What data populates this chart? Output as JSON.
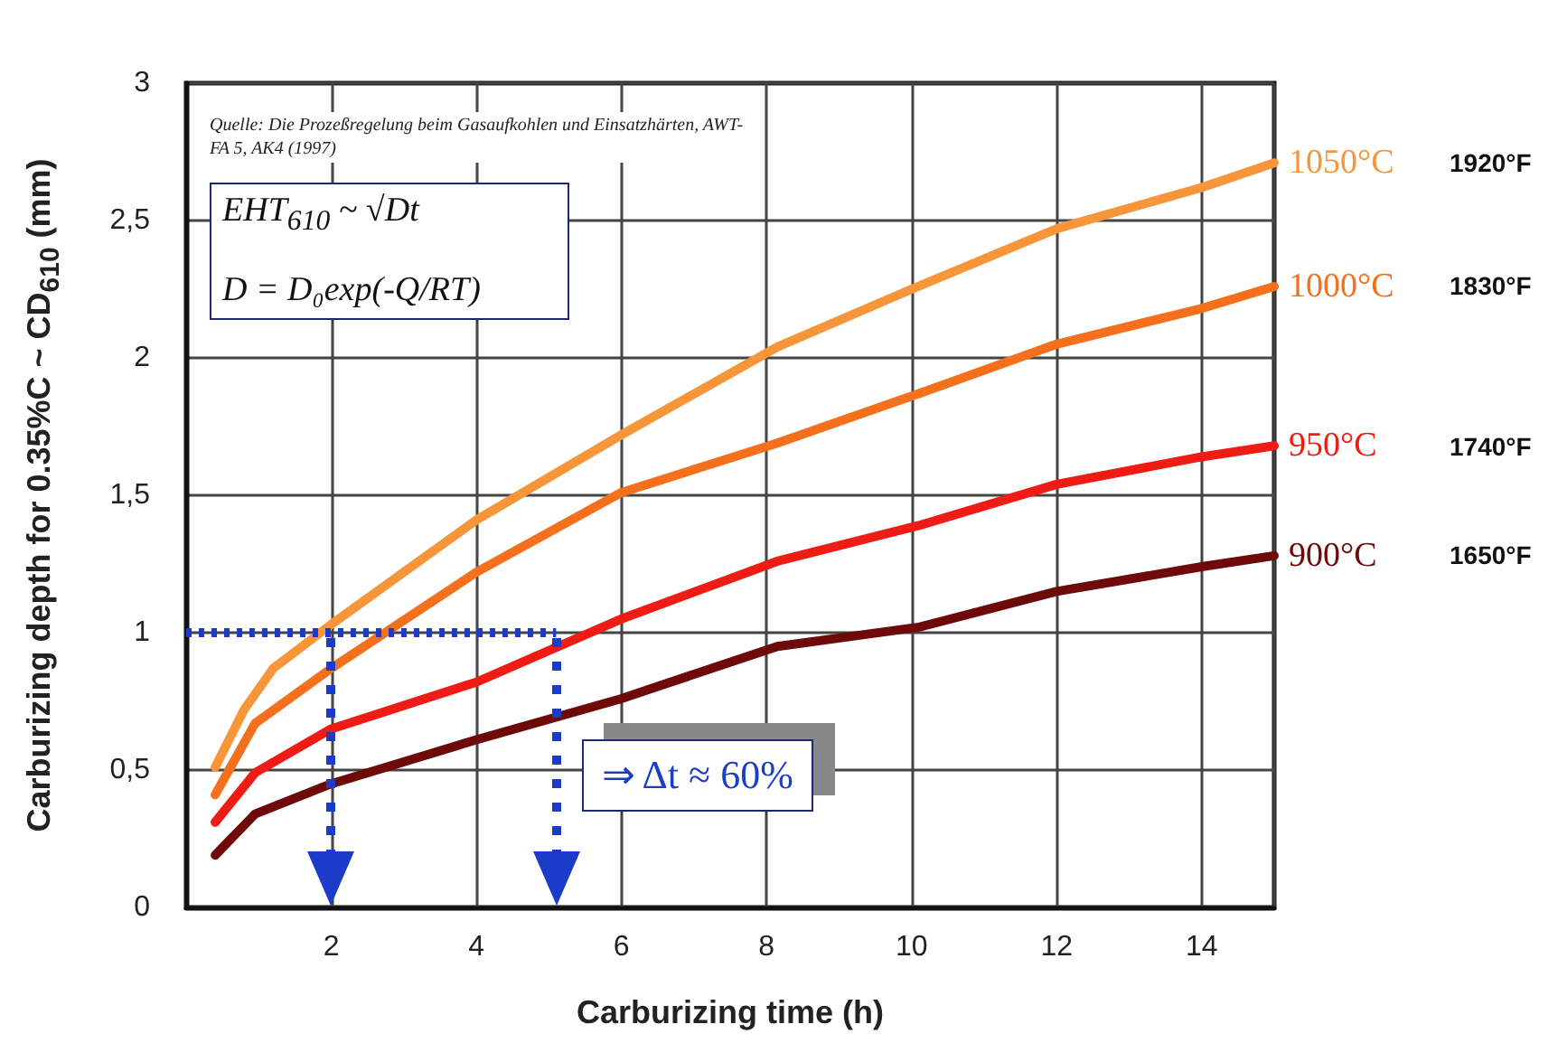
{
  "chart_data": {
    "type": "line",
    "xlabel": "Carburizing time (h)",
    "ylabel": "Carburizing depth for 0.35%C ~ CD$_{610}$ (mm)",
    "xlim": [
      0,
      15
    ],
    "xticks": [
      2,
      4,
      6,
      8,
      10,
      12,
      14
    ],
    "ylim": [
      0,
      3
    ],
    "yticks": [
      0,
      {
        "value": 0.5,
        "label": "0,5"
      },
      1,
      {
        "value": 1.5,
        "label": "1,5"
      },
      2,
      {
        "value": 2.5,
        "label": "2,5"
      },
      3
    ],
    "grid": true,
    "legend": false,
    "marker": "none",
    "series": [
      {
        "name": "1050°C",
        "color": "#f7953a",
        "x": [
          0.4,
          0.8,
          1.2,
          2,
          4,
          6,
          8.15,
          10,
          12,
          14,
          15
        ],
        "values": [
          0.51,
          0.72,
          0.87,
          1.03,
          1.41,
          1.72,
          2.04,
          2.25,
          2.47,
          2.62,
          2.71
        ]
      },
      {
        "name": "1000°C",
        "color": "#f5701c",
        "x": [
          0.4,
          0.95,
          2,
          4,
          6,
          8.15,
          10.1,
          12,
          14,
          15
        ],
        "values": [
          0.41,
          0.67,
          0.87,
          1.22,
          1.51,
          1.69,
          1.87,
          2.05,
          2.18,
          2.26
        ]
      },
      {
        "name": "950°C",
        "color": "#ee1c14",
        "x": [
          0.4,
          0.95,
          2,
          4,
          6,
          8.15,
          10.1,
          12,
          14,
          15
        ],
        "values": [
          0.31,
          0.49,
          0.65,
          0.82,
          1.05,
          1.26,
          1.39,
          1.54,
          1.64,
          1.68
        ]
      },
      {
        "name": "900°C",
        "color": "#6e0a0a",
        "x": [
          0.4,
          0.95,
          2,
          4,
          6,
          8.15,
          10.1,
          12,
          14,
          15
        ],
        "values": [
          0.19,
          0.34,
          0.45,
          0.61,
          0.76,
          0.95,
          1.02,
          1.15,
          1.24,
          1.28
        ]
      },
      {
        "color": "#1a3cc8",
        "line_style": "dotted",
        "x": [
          0,
          2,
          5.1
        ],
        "values": [
          1,
          1,
          1
        ]
      }
    ],
    "annotations": [
      "Quelle: Die Prozeßregelung beim Gasaufkohlen und Einsatzhärten, AWT-FA 5, AK4 (1997)",
      "EHT$_{610}$ ~ √Dt",
      "D = D₀exp(-Q/RT)",
      "⇒ Δt ≈ 60%",
      "1920°F",
      "1830°F",
      "1740°F",
      "1650°F"
    ]
  }
}
